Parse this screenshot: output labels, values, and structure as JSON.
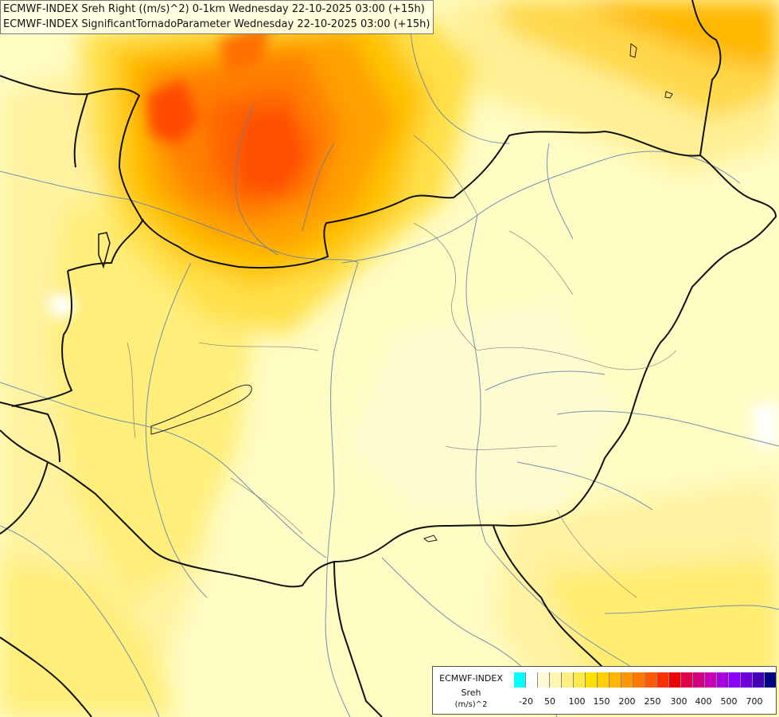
{
  "title": {
    "line1": "ECMWF-INDEX Sreh Right ((m/s)^2) 0-1km Wednesday 22-10-2025 03:00 (+15h)",
    "line2": "ECMWF-INDEX SignificantTornadoParameter Wednesday 22-10-2025 03:00 (+15h)"
  },
  "legend": {
    "model": "ECMWF-INDEX",
    "parameter": "Sreh",
    "unit": "(m/s)^2",
    "colors": [
      "#00ffff",
      "#ffffff",
      "#fff9d6",
      "#fff6b0",
      "#ffef80",
      "#ffe84a",
      "#ffe000",
      "#ffcf00",
      "#ffb400",
      "#ff9600",
      "#ff7800",
      "#ff5a00",
      "#ff3000",
      "#f00000",
      "#e0004a",
      "#d20080",
      "#c800b4",
      "#aa00e0",
      "#8c00ff",
      "#6e00e0",
      "#4600b4",
      "#000080"
    ],
    "tick_labels": [
      "-20",
      "50",
      "100",
      "150",
      "200",
      "250",
      "300",
      "400",
      "500",
      "700"
    ]
  }
}
